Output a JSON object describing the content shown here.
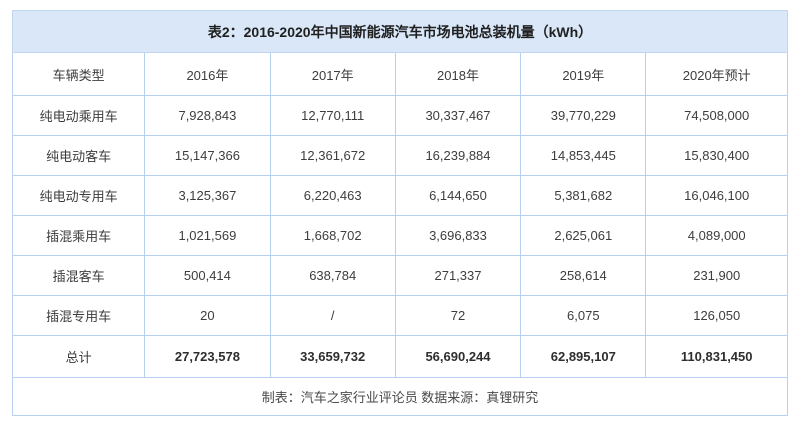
{
  "table": {
    "title": "表2：2016-2020年中国新能源汽车市场电池总装机量（kWh）",
    "columns": [
      "车辆类型",
      "2016年",
      "2017年",
      "2018年",
      "2019年",
      "2020年预计"
    ],
    "rows": [
      {
        "label": "纯电动乘用车",
        "values": [
          "7,928,843",
          "12,770,111",
          "30,337,467",
          "39,770,229",
          "74,508,000"
        ]
      },
      {
        "label": "纯电动客车",
        "values": [
          "15,147,366",
          "12,361,672",
          "16,239,884",
          "14,853,445",
          "15,830,400"
        ]
      },
      {
        "label": "纯电动专用车",
        "values": [
          "3,125,367",
          "6,220,463",
          "6,144,650",
          "5,381,682",
          "16,046,100"
        ]
      },
      {
        "label": "插混乘用车",
        "values": [
          "1,021,569",
          "1,668,702",
          "3,696,833",
          "2,625,061",
          "4,089,000"
        ]
      },
      {
        "label": "插混客车",
        "values": [
          "500,414",
          "638,784",
          "271,337",
          "258,614",
          "231,900"
        ]
      },
      {
        "label": "插混专用车",
        "values": [
          "20",
          "/",
          "72",
          "6,075",
          "126,050"
        ]
      }
    ],
    "total_row": {
      "label": "总计",
      "values": [
        "27,723,578",
        "33,659,732",
        "56,690,244",
        "62,895,107",
        "110,831,450"
      ]
    },
    "footer": "制表：汽车之家行业评论员  数据来源：真锂研究",
    "colors": {
      "title_bg": "#d9e7f8",
      "border": "#b7d0ef",
      "text": "#3d3d3d"
    }
  },
  "chart_data": {
    "type": "table",
    "title": "表2：2016-2020年中国新能源汽车市场电池总装机量（kWh）",
    "categories": [
      "2016年",
      "2017年",
      "2018年",
      "2019年",
      "2020年预计"
    ],
    "series": [
      {
        "name": "纯电动乘用车",
        "values": [
          7928843,
          12770111,
          30337467,
          39770229,
          74508000
        ]
      },
      {
        "name": "纯电动客车",
        "values": [
          15147366,
          12361672,
          16239884,
          14853445,
          15830400
        ]
      },
      {
        "name": "纯电动专用车",
        "values": [
          3125367,
          6220463,
          6144650,
          5381682,
          16046100
        ]
      },
      {
        "name": "插混乘用车",
        "values": [
          1021569,
          1668702,
          3696833,
          2625061,
          4089000
        ]
      },
      {
        "name": "插混客车",
        "values": [
          500414,
          638784,
          271337,
          258614,
          231900
        ]
      },
      {
        "name": "插混专用车",
        "values": [
          20,
          null,
          72,
          6075,
          126050
        ]
      },
      {
        "name": "总计",
        "values": [
          27723578,
          33659732,
          56690244,
          62895107,
          110831450
        ]
      }
    ],
    "source_note": "制表：汽车之家行业评论员  数据来源：真锂研究"
  }
}
